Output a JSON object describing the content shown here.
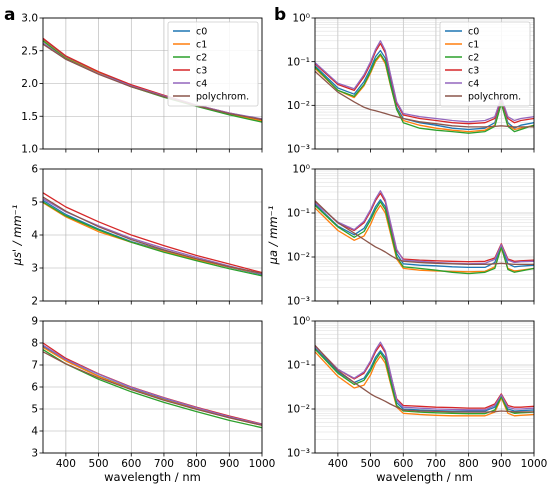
{
  "panel_letters": [
    "a",
    "b"
  ],
  "series_colors": {
    "c0": "#1f77b4",
    "c1": "#ff7f0e",
    "c2": "#2ca02c",
    "c3": "#d62728",
    "c4": "#9467bd",
    "polychrom.": "#8c564b"
  },
  "chart_data": [
    {
      "id": "a-top",
      "panel": "a",
      "type": "line",
      "yscale": "linear",
      "xlim": [
        330,
        1000
      ],
      "ylim": [
        1.0,
        3.0
      ],
      "xticks": [
        400,
        500,
        600,
        700,
        800,
        900,
        1000
      ],
      "yticks": [
        1.0,
        1.5,
        2.0,
        2.5,
        3.0
      ],
      "ytick_labels": [
        "1.0",
        "1.5",
        "2.0",
        "2.5",
        "3.0"
      ],
      "xlabel": "",
      "ylabel": "",
      "grid": true,
      "legend": "top-right",
      "x": [
        330,
        400,
        500,
        600,
        700,
        800,
        900,
        1000
      ],
      "series": [
        {
          "name": "c0",
          "values": [
            2.67,
            2.4,
            2.17,
            1.96,
            1.8,
            1.66,
            1.54,
            1.44
          ]
        },
        {
          "name": "c1",
          "values": [
            2.66,
            2.39,
            2.16,
            1.95,
            1.8,
            1.66,
            1.53,
            1.43
          ]
        },
        {
          "name": "c2",
          "values": [
            2.65,
            2.38,
            2.15,
            1.95,
            1.79,
            1.65,
            1.52,
            1.41
          ]
        },
        {
          "name": "c3",
          "values": [
            2.69,
            2.42,
            2.18,
            1.98,
            1.82,
            1.67,
            1.55,
            1.45
          ]
        },
        {
          "name": "c4",
          "values": [
            2.62,
            2.37,
            2.15,
            1.96,
            1.81,
            1.67,
            1.55,
            1.46
          ]
        },
        {
          "name": "polychrom.",
          "values": [
            2.6,
            2.37,
            2.14,
            1.95,
            1.8,
            1.66,
            1.54,
            1.45
          ]
        }
      ]
    },
    {
      "id": "a-mid",
      "panel": "a",
      "type": "line",
      "yscale": "linear",
      "xlim": [
        330,
        1000
      ],
      "ylim": [
        2,
        6
      ],
      "xticks": [
        400,
        500,
        600,
        700,
        800,
        900,
        1000
      ],
      "yticks": [
        2,
        3,
        4,
        5,
        6
      ],
      "ytick_labels": [
        "2",
        "3",
        "4",
        "5",
        "6"
      ],
      "xlabel": "",
      "ylabel": "μs' / mm⁻¹",
      "grid": true,
      "legend": "",
      "x": [
        330,
        400,
        500,
        600,
        700,
        800,
        900,
        1000
      ],
      "series": [
        {
          "name": "c0",
          "values": [
            5.05,
            4.62,
            4.18,
            3.8,
            3.52,
            3.26,
            3.02,
            2.8
          ]
        },
        {
          "name": "c1",
          "values": [
            4.98,
            4.55,
            4.1,
            3.78,
            3.5,
            3.25,
            3.03,
            2.82
          ]
        },
        {
          "name": "c2",
          "values": [
            5.0,
            4.58,
            4.15,
            3.78,
            3.48,
            3.22,
            2.98,
            2.76
          ]
        },
        {
          "name": "c3",
          "values": [
            5.28,
            4.85,
            4.4,
            4.0,
            3.68,
            3.38,
            3.12,
            2.86
          ]
        },
        {
          "name": "c4",
          "values": [
            5.1,
            4.7,
            4.28,
            3.9,
            3.6,
            3.32,
            3.06,
            2.82
          ]
        },
        {
          "name": "polychrom.",
          "values": [
            5.15,
            4.72,
            4.25,
            3.86,
            3.55,
            3.28,
            3.04,
            2.84
          ]
        }
      ]
    },
    {
      "id": "a-bot",
      "panel": "a",
      "type": "line",
      "yscale": "linear",
      "xlim": [
        330,
        1000
      ],
      "ylim": [
        3,
        9
      ],
      "xticks": [
        400,
        500,
        600,
        700,
        800,
        900,
        1000
      ],
      "xtick_labels": [
        "400",
        "500",
        "600",
        "700",
        "800",
        "900",
        "1000"
      ],
      "yticks": [
        3,
        4,
        5,
        6,
        7,
        8,
        9
      ],
      "ytick_labels": [
        "3",
        "4",
        "5",
        "6",
        "7",
        "8",
        "9"
      ],
      "xlabel": "wavelength / nm",
      "ylabel": "",
      "grid": true,
      "legend": "",
      "x": [
        330,
        400,
        500,
        600,
        700,
        800,
        900,
        1000
      ],
      "series": [
        {
          "name": "c0",
          "values": [
            7.85,
            7.2,
            6.5,
            5.92,
            5.45,
            5.02,
            4.62,
            4.28
          ]
        },
        {
          "name": "c1",
          "values": [
            7.8,
            7.18,
            6.48,
            5.9,
            5.42,
            5.0,
            4.6,
            4.26
          ]
        },
        {
          "name": "c2",
          "values": [
            7.7,
            7.05,
            6.35,
            5.78,
            5.3,
            4.88,
            4.48,
            4.15
          ]
        },
        {
          "name": "c3",
          "values": [
            8.0,
            7.3,
            6.6,
            6.0,
            5.52,
            5.08,
            4.68,
            4.32
          ]
        },
        {
          "name": "c4",
          "values": [
            7.9,
            7.25,
            6.58,
            5.98,
            5.5,
            5.06,
            4.65,
            4.3
          ]
        },
        {
          "name": "polychrom.",
          "values": [
            7.6,
            7.05,
            6.42,
            5.88,
            5.4,
            4.98,
            4.6,
            4.26
          ]
        }
      ]
    },
    {
      "id": "b-top",
      "panel": "b",
      "type": "line",
      "yscale": "log",
      "xlim": [
        330,
        1000
      ],
      "ylim": [
        0.001,
        1
      ],
      "xticks": [
        400,
        500,
        600,
        700,
        800,
        900,
        1000
      ],
      "yticks": [
        0.001,
        0.01,
        0.1,
        1
      ],
      "ytick_labels": [
        "10⁻³",
        "10⁻²",
        "10⁻¹",
        "10⁰"
      ],
      "xlabel": "",
      "ylabel": "",
      "grid": true,
      "legend": "top-right",
      "x": [
        330,
        400,
        450,
        480,
        500,
        515,
        530,
        545,
        560,
        580,
        600,
        650,
        700,
        750,
        800,
        850,
        880,
        900,
        920,
        940,
        960,
        1000
      ],
      "series": [
        {
          "name": "c0",
          "values": [
            0.08,
            0.025,
            0.018,
            0.035,
            0.07,
            0.13,
            0.18,
            0.12,
            0.04,
            0.009,
            0.005,
            0.004,
            0.0035,
            0.003,
            0.0028,
            0.003,
            0.004,
            0.012,
            0.004,
            0.003,
            0.0035,
            0.004
          ]
        },
        {
          "name": "c1",
          "values": [
            0.07,
            0.022,
            0.015,
            0.028,
            0.055,
            0.1,
            0.14,
            0.09,
            0.03,
            0.008,
            0.0045,
            0.0035,
            0.003,
            0.0027,
            0.0025,
            0.0027,
            0.0035,
            0.011,
            0.0035,
            0.0028,
            0.003,
            0.0035
          ]
        },
        {
          "name": "c2",
          "values": [
            0.075,
            0.022,
            0.016,
            0.03,
            0.06,
            0.11,
            0.15,
            0.1,
            0.032,
            0.008,
            0.004,
            0.003,
            0.0027,
            0.0025,
            0.0023,
            0.0025,
            0.0033,
            0.011,
            0.0033,
            0.0025,
            0.0028,
            0.0035
          ]
        },
        {
          "name": "c3",
          "values": [
            0.09,
            0.03,
            0.022,
            0.045,
            0.09,
            0.17,
            0.26,
            0.16,
            0.05,
            0.011,
            0.006,
            0.005,
            0.0045,
            0.004,
            0.0038,
            0.004,
            0.005,
            0.014,
            0.005,
            0.004,
            0.0045,
            0.005
          ]
        },
        {
          "name": "c4",
          "values": [
            0.095,
            0.032,
            0.024,
            0.05,
            0.1,
            0.19,
            0.3,
            0.18,
            0.055,
            0.012,
            0.0065,
            0.0055,
            0.005,
            0.0045,
            0.0042,
            0.0045,
            0.0055,
            0.015,
            0.0055,
            0.0045,
            0.005,
            0.0055
          ]
        },
        {
          "name": "polychrom.",
          "values": [
            0.06,
            0.02,
            0.012,
            0.009,
            0.008,
            0.0075,
            0.007,
            0.0065,
            0.006,
            0.0055,
            0.005,
            0.0042,
            0.0038,
            0.0034,
            0.0032,
            0.0032,
            0.0033,
            0.0034,
            0.0033,
            0.0032,
            0.0032,
            0.0032
          ]
        }
      ]
    },
    {
      "id": "b-mid",
      "panel": "b",
      "type": "line",
      "yscale": "log",
      "xlim": [
        330,
        1000
      ],
      "ylim": [
        0.001,
        1
      ],
      "xticks": [
        400,
        500,
        600,
        700,
        800,
        900,
        1000
      ],
      "yticks": [
        0.001,
        0.01,
        0.1,
        1
      ],
      "ytick_labels": [
        "10⁻³",
        "10⁻²",
        "10⁻¹",
        "10⁰"
      ],
      "xlabel": "",
      "ylabel": "μa / mm⁻¹",
      "grid": true,
      "legend": "",
      "x": [
        330,
        400,
        450,
        480,
        500,
        515,
        530,
        545,
        560,
        580,
        600,
        650,
        700,
        750,
        800,
        850,
        880,
        900,
        920,
        940,
        960,
        1000
      ],
      "series": [
        {
          "name": "c0",
          "values": [
            0.16,
            0.05,
            0.032,
            0.045,
            0.08,
            0.14,
            0.2,
            0.14,
            0.05,
            0.012,
            0.007,
            0.0065,
            0.0063,
            0.006,
            0.0058,
            0.0058,
            0.0075,
            0.018,
            0.007,
            0.006,
            0.0062,
            0.0065
          ]
        },
        {
          "name": "c1",
          "values": [
            0.13,
            0.04,
            0.024,
            0.03,
            0.055,
            0.1,
            0.15,
            0.1,
            0.036,
            0.009,
            0.0055,
            0.005,
            0.0048,
            0.0047,
            0.0046,
            0.0047,
            0.006,
            0.016,
            0.0055,
            0.0048,
            0.005,
            0.0055
          ]
        },
        {
          "name": "c2",
          "values": [
            0.15,
            0.048,
            0.028,
            0.038,
            0.07,
            0.12,
            0.18,
            0.12,
            0.042,
            0.01,
            0.006,
            0.0055,
            0.005,
            0.0045,
            0.0042,
            0.0045,
            0.0055,
            0.017,
            0.0052,
            0.0045,
            0.0048,
            0.0055
          ]
        },
        {
          "name": "c3",
          "values": [
            0.18,
            0.06,
            0.04,
            0.06,
            0.11,
            0.19,
            0.28,
            0.18,
            0.06,
            0.014,
            0.009,
            0.0085,
            0.0082,
            0.008,
            0.0078,
            0.008,
            0.0095,
            0.02,
            0.009,
            0.008,
            0.0082,
            0.0085
          ]
        },
        {
          "name": "c4",
          "values": [
            0.17,
            0.062,
            0.042,
            0.065,
            0.12,
            0.21,
            0.32,
            0.2,
            0.065,
            0.015,
            0.0085,
            0.008,
            0.0075,
            0.0072,
            0.007,
            0.0072,
            0.0088,
            0.019,
            0.0085,
            0.0075,
            0.0078,
            0.008
          ]
        },
        {
          "name": "polychrom.",
          "values": [
            0.19,
            0.06,
            0.035,
            0.025,
            0.02,
            0.017,
            0.015,
            0.013,
            0.011,
            0.009,
            0.008,
            0.0075,
            0.0072,
            0.007,
            0.0068,
            0.0068,
            0.007,
            0.0072,
            0.007,
            0.0068,
            0.0068,
            0.0068
          ]
        }
      ]
    },
    {
      "id": "b-bot",
      "panel": "b",
      "type": "line",
      "yscale": "log",
      "xlim": [
        330,
        1000
      ],
      "ylim": [
        0.001,
        1
      ],
      "xticks": [
        400,
        500,
        600,
        700,
        800,
        900,
        1000
      ],
      "xtick_labels": [
        "400",
        "500",
        "600",
        "700",
        "800",
        "900",
        "1000"
      ],
      "yticks": [
        0.001,
        0.01,
        0.1,
        1
      ],
      "ytick_labels": [
        "10⁻³",
        "10⁻²",
        "10⁻¹",
        "10⁰"
      ],
      "xlabel": "wavelength / nm",
      "ylabel": "",
      "grid": true,
      "legend": "",
      "x": [
        330,
        400,
        450,
        480,
        500,
        515,
        530,
        545,
        560,
        580,
        600,
        650,
        700,
        750,
        800,
        850,
        880,
        900,
        920,
        940,
        960,
        1000
      ],
      "series": [
        {
          "name": "c0",
          "values": [
            0.25,
            0.07,
            0.04,
            0.05,
            0.085,
            0.15,
            0.21,
            0.15,
            0.05,
            0.014,
            0.01,
            0.0095,
            0.0092,
            0.009,
            0.009,
            0.009,
            0.011,
            0.02,
            0.01,
            0.009,
            0.0092,
            0.0095
          ]
        },
        {
          "name": "c1",
          "values": [
            0.2,
            0.055,
            0.03,
            0.035,
            0.06,
            0.11,
            0.16,
            0.11,
            0.04,
            0.011,
            0.008,
            0.0075,
            0.0072,
            0.007,
            0.007,
            0.007,
            0.0085,
            0.018,
            0.008,
            0.007,
            0.0072,
            0.0075
          ]
        },
        {
          "name": "c2",
          "values": [
            0.23,
            0.065,
            0.036,
            0.045,
            0.075,
            0.13,
            0.19,
            0.13,
            0.045,
            0.012,
            0.009,
            0.0085,
            0.0082,
            0.008,
            0.0078,
            0.0078,
            0.0095,
            0.019,
            0.009,
            0.008,
            0.0082,
            0.0085
          ]
        },
        {
          "name": "c3",
          "values": [
            0.27,
            0.08,
            0.048,
            0.065,
            0.115,
            0.2,
            0.29,
            0.19,
            0.065,
            0.017,
            0.012,
            0.0115,
            0.011,
            0.0108,
            0.0105,
            0.0105,
            0.013,
            0.022,
            0.012,
            0.011,
            0.011,
            0.0115
          ]
        },
        {
          "name": "c4",
          "values": [
            0.26,
            0.08,
            0.05,
            0.07,
            0.125,
            0.22,
            0.33,
            0.21,
            0.07,
            0.016,
            0.011,
            0.0105,
            0.01,
            0.0098,
            0.0096,
            0.0096,
            0.012,
            0.021,
            0.011,
            0.01,
            0.01,
            0.0105
          ]
        },
        {
          "name": "polychrom.",
          "values": [
            0.28,
            0.075,
            0.04,
            0.028,
            0.022,
            0.019,
            0.017,
            0.015,
            0.013,
            0.011,
            0.0095,
            0.009,
            0.0088,
            0.0086,
            0.0085,
            0.0085,
            0.0087,
            0.009,
            0.0088,
            0.0086,
            0.0086,
            0.0086
          ]
        }
      ]
    }
  ]
}
